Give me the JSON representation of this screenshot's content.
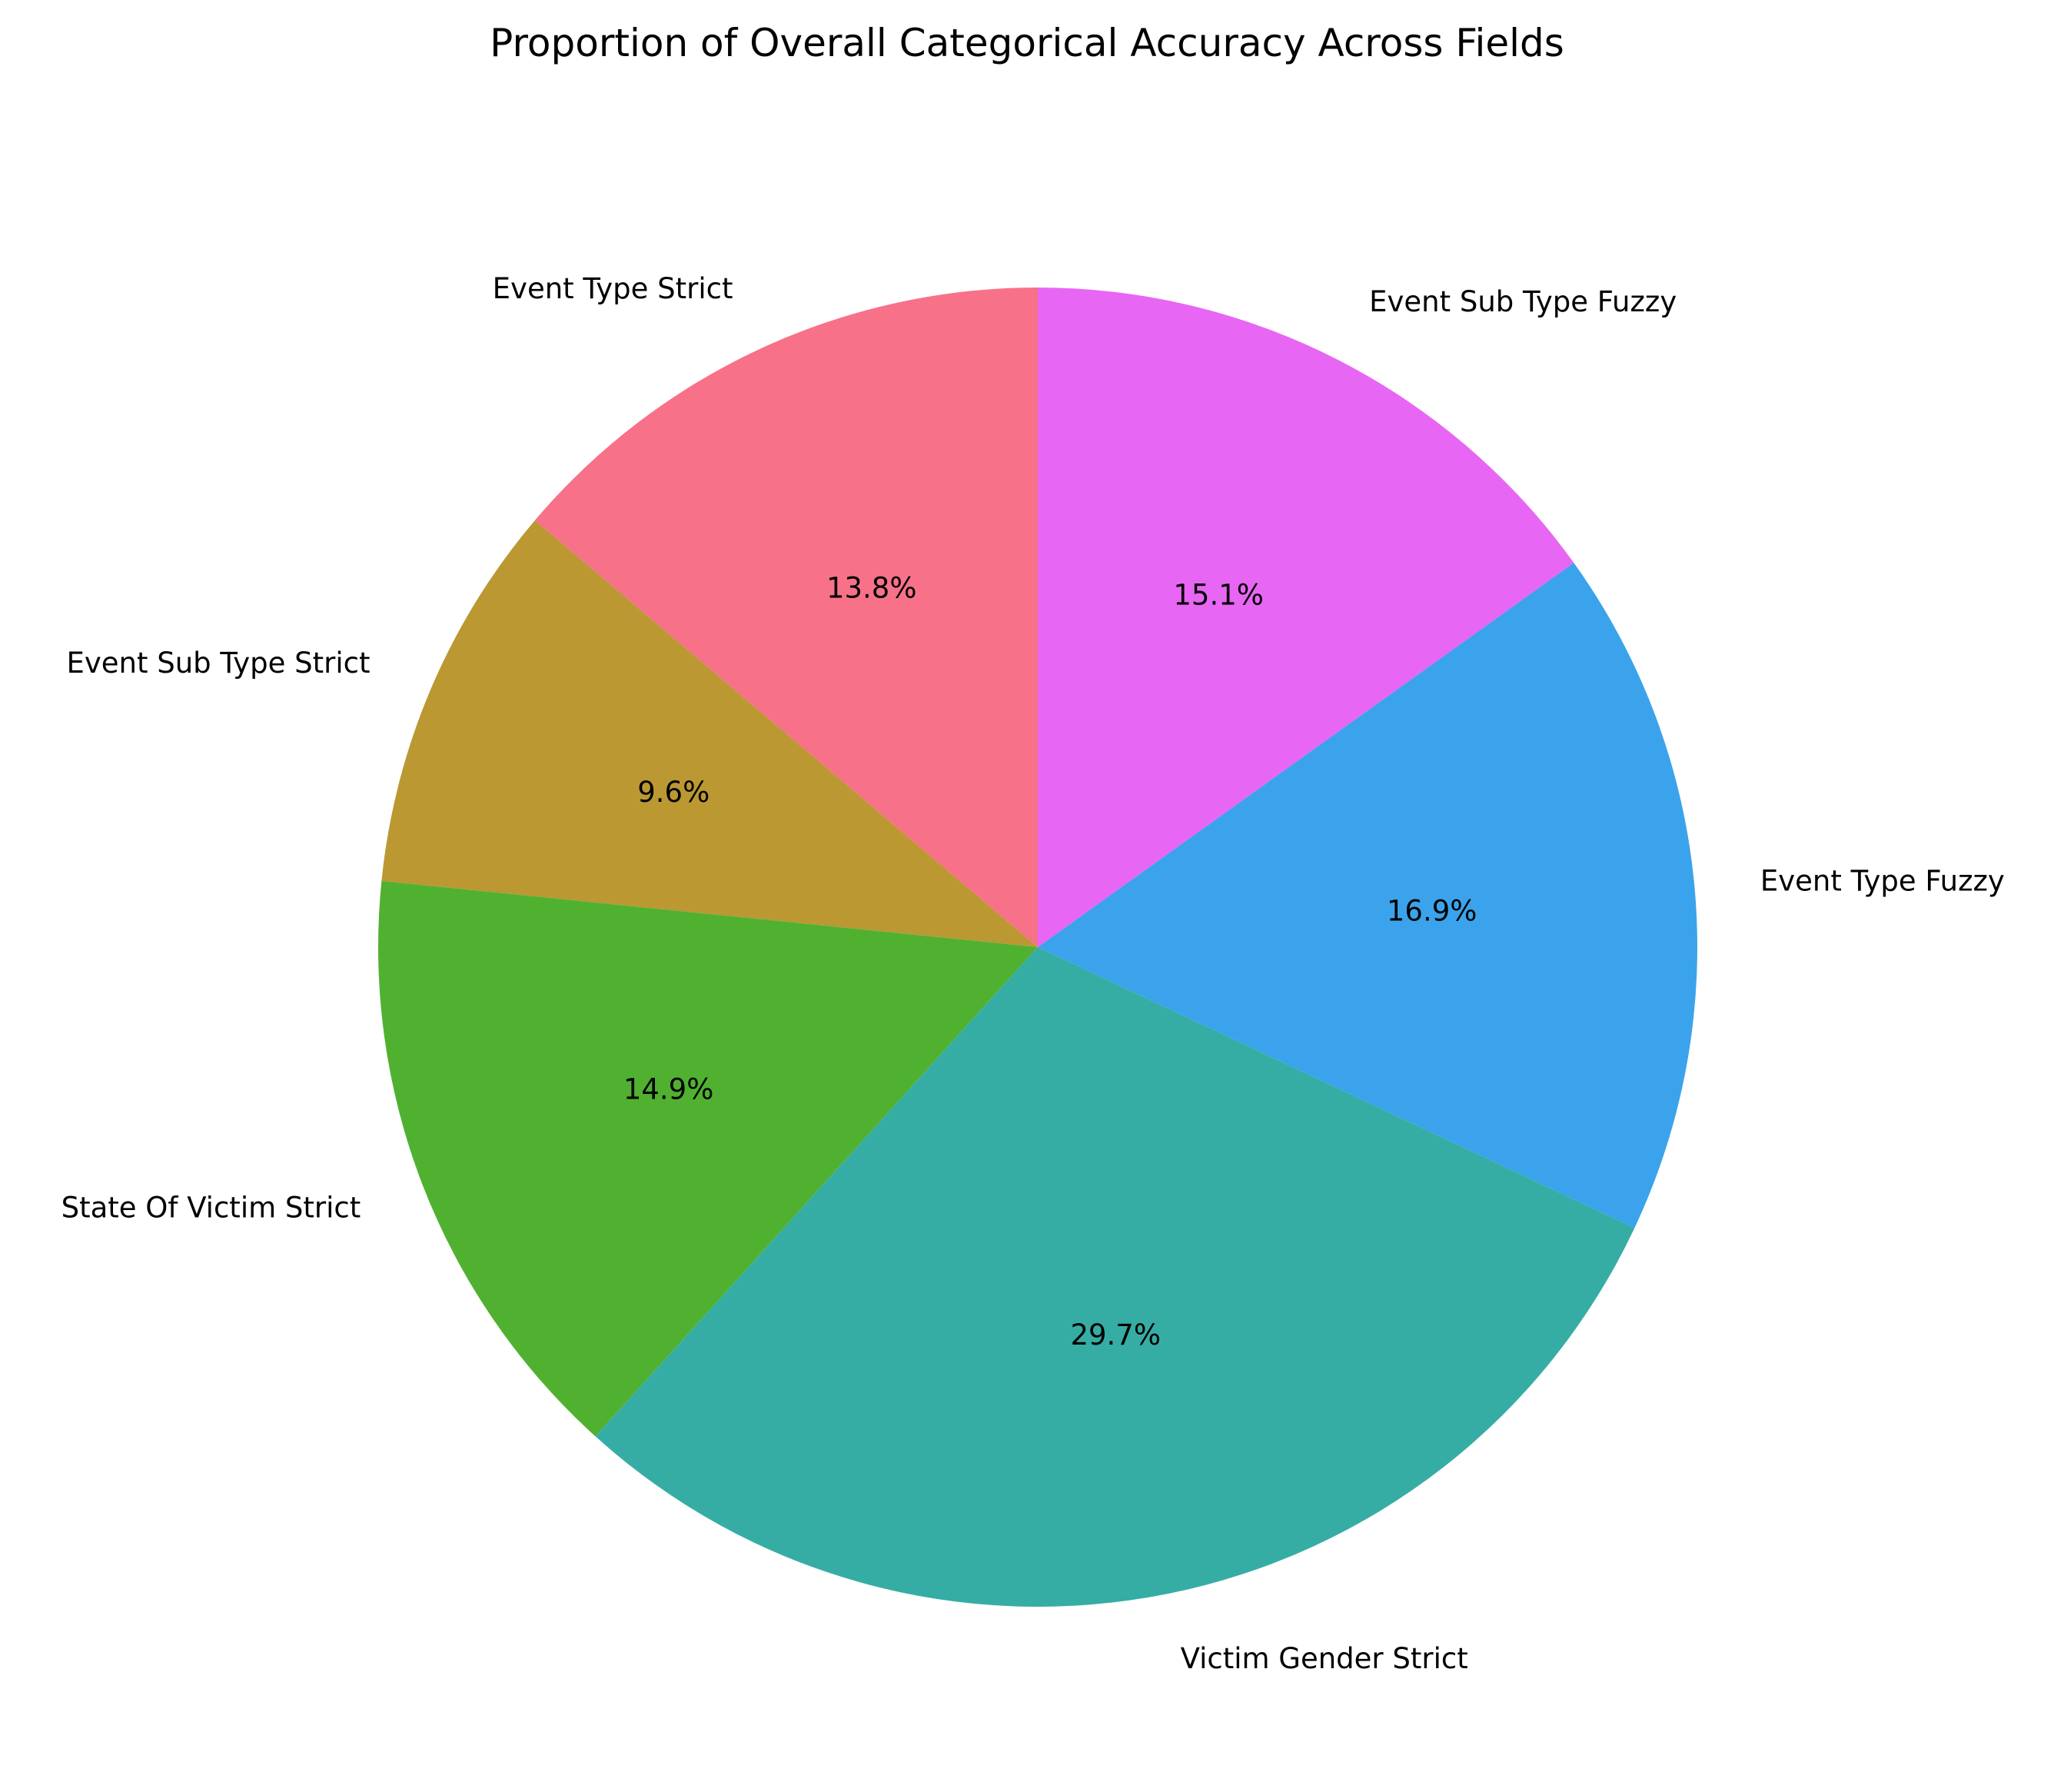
{
  "chart_data": {
    "type": "pie",
    "title": "Proportion of Overall Categorical Accuracy Across Fields",
    "start_angle_deg": 90,
    "direction": "counterclockwise",
    "slices": [
      {
        "label": "Event Type Strict",
        "value": 13.8,
        "pct_label": "13.8%",
        "color": "#f77189"
      },
      {
        "label": "Event Sub Type Strict",
        "value": 9.6,
        "pct_label": "9.6%",
        "color": "#bb9832"
      },
      {
        "label": "State Of Victim Strict",
        "value": 14.9,
        "pct_label": "14.9%",
        "color": "#50b131"
      },
      {
        "label": "Victim Gender Strict",
        "value": 29.7,
        "pct_label": "29.7%",
        "color": "#36ada4"
      },
      {
        "label": "Event Type Fuzzy",
        "value": 16.9,
        "pct_label": "16.9%",
        "color": "#3ba3ec"
      },
      {
        "label": "Event Sub Type Fuzzy",
        "value": 15.1,
        "pct_label": "15.1%",
        "color": "#e866f4"
      }
    ]
  }
}
